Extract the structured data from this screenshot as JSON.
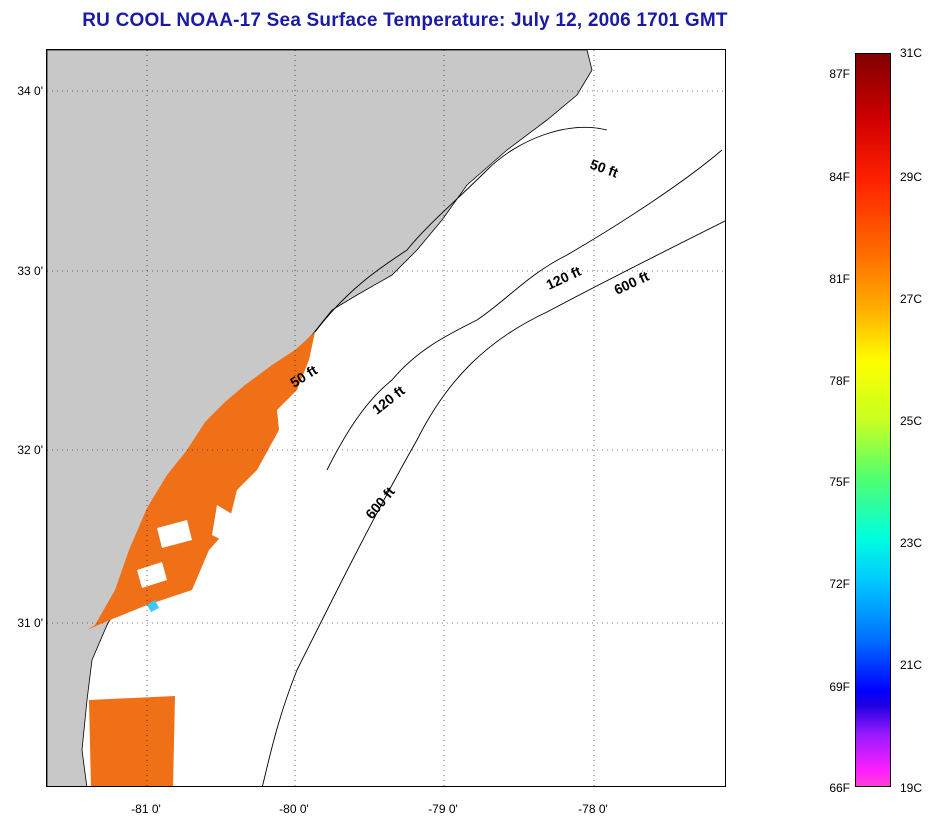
{
  "title": "RU COOL  NOAA-17  Sea Surface Temperature:  July 12, 2006 1701 GMT",
  "lat_labels": [
    "34 0'",
    "33 0'",
    "32 0'",
    "31 0'"
  ],
  "lon_labels": [
    "-81 0'",
    "-80 0'",
    "-79 0'",
    "-78 0'"
  ],
  "contour_labels": [
    "50 ft",
    "50 ft",
    "120 ft",
    "120 ft",
    "600 ft",
    "600 ft"
  ],
  "colorbar": {
    "fahrenheit_labels": [
      "87F",
      "84F",
      "81F",
      "78F",
      "75F",
      "72F",
      "69F",
      "66F"
    ],
    "celsius_labels": [
      "31C",
      "29C",
      "27C",
      "25C",
      "23C",
      "21C",
      "19C"
    ]
  },
  "colors": {
    "land": "#c8c8c8",
    "title": "#1a1aa8",
    "sst_warm": "#f07018"
  }
}
